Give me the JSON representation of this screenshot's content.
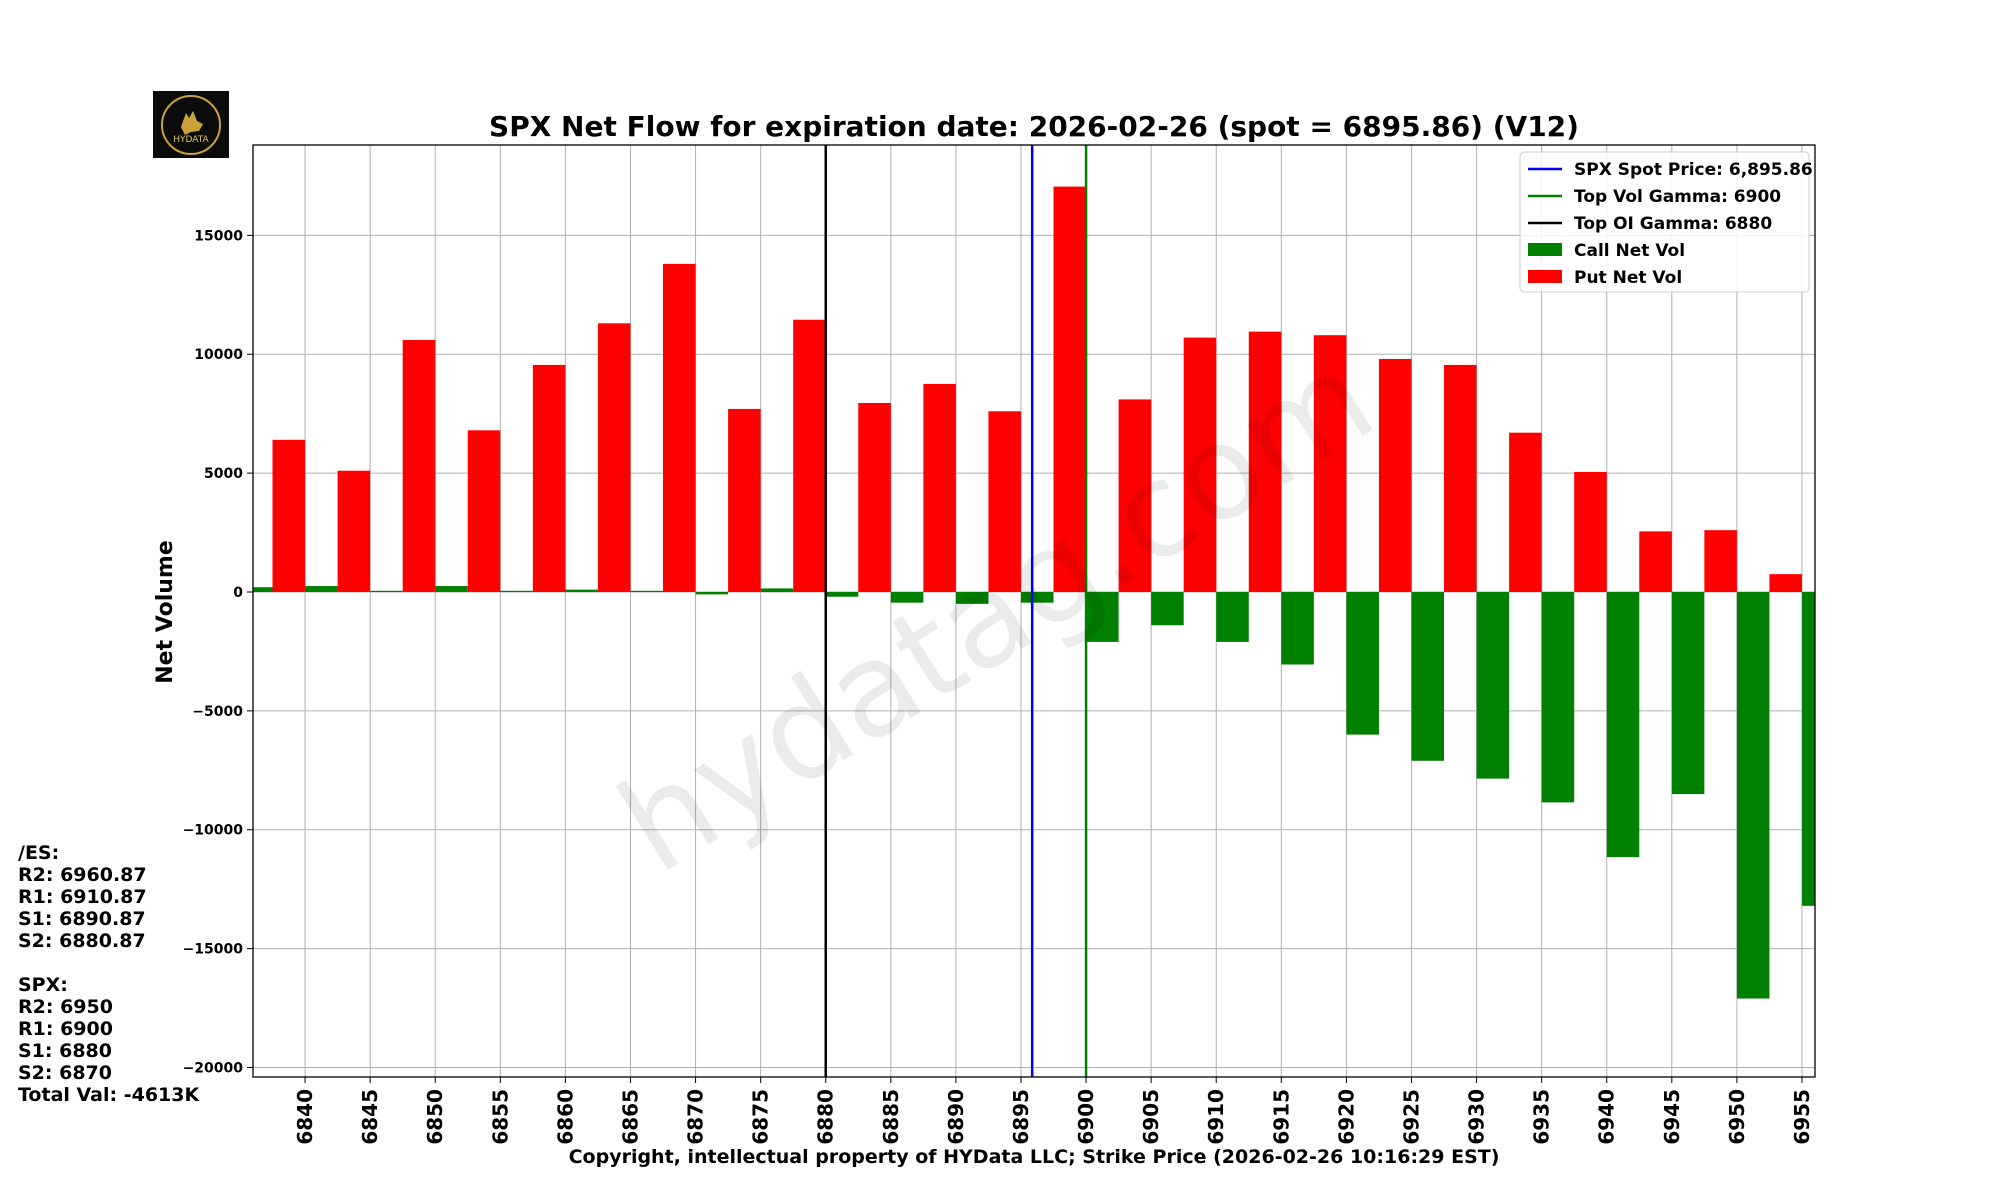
{
  "logo": {
    "text": "HYDATA",
    "subtext": "HYDATA"
  },
  "watermark": "hydatag.com",
  "side_notes": {
    "es_header": "/ES:",
    "es_levels": [
      "R2: 6960.87",
      "R1: 6910.87",
      "S1: 6890.87",
      "S2: 6880.87"
    ],
    "spx_header": "SPX:",
    "spx_levels": [
      "R2: 6950",
      "R1: 6900",
      "S1: 6880",
      "S2: 6870"
    ],
    "total": "Total Val: -4613K"
  },
  "colors": {
    "call": "#008000",
    "put": "#ff0000",
    "spot_line": "#0000ff",
    "vol_gamma_line": "#008000",
    "oi_gamma_line": "#000000"
  },
  "chart_data": {
    "type": "bar",
    "title": "SPX Net Flow for expiration date: 2026-02-26 (spot = 6895.86) (V12)",
    "xlabel": "Copyright, intellectual property of HYData LLC; Strike Price (2026-02-26 10:16:29 EST)",
    "ylabel": "Net Volume",
    "ylim": [
      -20400,
      18800
    ],
    "xlim": [
      6836,
      6956
    ],
    "yticks": [
      -20000,
      -15000,
      -10000,
      -5000,
      0,
      5000,
      10000,
      15000
    ],
    "ytick_labels": [
      "−20000",
      "−15000",
      "−10000",
      "−5000",
      "0",
      "5000",
      "10000",
      "15000"
    ],
    "xticks": [
      6840,
      6845,
      6850,
      6855,
      6860,
      6865,
      6870,
      6875,
      6880,
      6885,
      6890,
      6895,
      6900,
      6905,
      6910,
      6915,
      6920,
      6925,
      6930,
      6935,
      6940,
      6945,
      6950,
      6955
    ],
    "xtick_labels": [
      "6840",
      "6845",
      "6850",
      "6855",
      "6860",
      "6865",
      "6870",
      "6875",
      "6880",
      "6885",
      "6890",
      "6895",
      "6900",
      "6905",
      "6910",
      "6915",
      "6920",
      "6925",
      "6930",
      "6935",
      "6940",
      "6945",
      "6950",
      "6955"
    ],
    "grid": true,
    "bar_width": 2.5,
    "series": [
      {
        "name": "Call Net Vol",
        "offset": 1.25,
        "strikes": [
          6835,
          6840,
          6845,
          6850,
          6855,
          6860,
          6865,
          6870,
          6875,
          6880,
          6885,
          6890,
          6895,
          6900,
          6905,
          6910,
          6915,
          6920,
          6925,
          6930,
          6935,
          6940,
          6945,
          6950,
          6955
        ],
        "values": [
          200,
          250,
          50,
          250,
          50,
          100,
          50,
          -100,
          150,
          -200,
          -450,
          -500,
          -450,
          -2100,
          -1400,
          -2100,
          -3050,
          -6000,
          -7100,
          -7850,
          -8850,
          -11150,
          -8500,
          -17100,
          -13200
        ]
      },
      {
        "name": "Put Net Vol",
        "offset": -1.25,
        "strikes": [
          6840,
          6845,
          6850,
          6855,
          6860,
          6865,
          6870,
          6875,
          6880,
          6885,
          6890,
          6895,
          6900,
          6905,
          6910,
          6915,
          6920,
          6925,
          6930,
          6935,
          6940,
          6945,
          6950,
          6955
        ],
        "values": [
          6400,
          5100,
          10600,
          6800,
          9550,
          11300,
          13800,
          7700,
          11450,
          7950,
          8750,
          7600,
          17050,
          8100,
          10700,
          10950,
          10800,
          9800,
          9550,
          6700,
          5050,
          2550,
          2600,
          750
        ]
      }
    ],
    "vlines": [
      {
        "name": "SPX Spot Price: 6,895.86",
        "x": 6895.86,
        "color": "#0000ff"
      },
      {
        "name": "Top Vol Gamma: 6900",
        "x": 6900,
        "color": "#008000"
      },
      {
        "name": "Top OI Gamma: 6880",
        "x": 6880,
        "color": "#000000"
      }
    ],
    "legend": {
      "position": "top-right",
      "entries": [
        "SPX Spot Price: 6,895.86",
        "Top Vol Gamma: 6900",
        "Top OI Gamma: 6880",
        "Call Net Vol",
        "Put Net Vol"
      ]
    }
  }
}
